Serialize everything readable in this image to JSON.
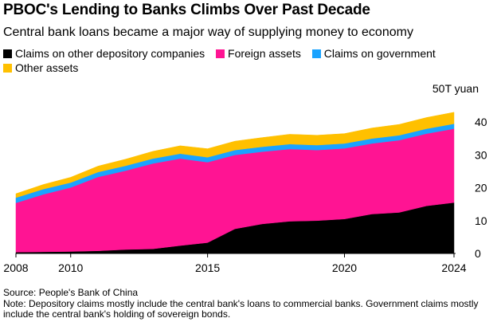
{
  "title": "PBOC's Lending to Banks Climbs Over Past Decade",
  "subtitle": "Central bank loans became a major way of supplying money to economy",
  "source": "Source: People's Bank of China",
  "note": "Note: Depository claims mostly include the central bank's loans to commercial banks. Government claims mostly include the central bank's holding of sovereign bonds.",
  "chart_data": {
    "type": "area",
    "stacked": true,
    "title": "PBOC's Lending to Banks Climbs Over Past Decade",
    "subtitle": "Central bank loans became a major way of supplying money to economy",
    "ylabel": "T yuan",
    "yunit_label": "50T yuan",
    "ylim": [
      0,
      50
    ],
    "yticks": [
      "0",
      "10",
      "20",
      "30",
      "40",
      "50T yuan"
    ],
    "xticks": [
      "2008",
      "2010",
      "2015",
      "2020",
      "2024"
    ],
    "x": [
      2008,
      2009,
      2010,
      2011,
      2012,
      2013,
      2014,
      2015,
      2016,
      2017,
      2018,
      2019,
      2020,
      2021,
      2022,
      2023,
      2024
    ],
    "series": [
      {
        "name": "Claims on other depository companies",
        "color": "#000000",
        "values": [
          0.4,
          0.5,
          0.6,
          0.8,
          1.2,
          1.4,
          2.4,
          3.3,
          7.5,
          9.0,
          9.8,
          10.0,
          10.5,
          12.0,
          12.5,
          14.5,
          15.5
        ]
      },
      {
        "name": "Foreign assets",
        "color": "#ff1493",
        "values": [
          15.0,
          17.5,
          19.5,
          22.5,
          24.0,
          26.0,
          26.5,
          24.5,
          22.5,
          22.0,
          22.0,
          21.5,
          21.5,
          21.5,
          22.0,
          22.0,
          22.5
        ]
      },
      {
        "name": "Claims on government",
        "color": "#1aa3ff",
        "values": [
          1.6,
          1.6,
          1.5,
          1.5,
          1.5,
          1.5,
          1.5,
          1.5,
          1.5,
          1.5,
          1.5,
          1.5,
          1.5,
          1.5,
          1.5,
          1.5,
          1.5
        ]
      },
      {
        "name": "Other assets",
        "color": "#ffc000",
        "values": [
          1.2,
          1.4,
          1.6,
          1.8,
          2.0,
          2.2,
          2.4,
          2.6,
          2.7,
          2.8,
          3.0,
          3.0,
          3.0,
          3.2,
          3.3,
          3.4,
          3.5
        ]
      }
    ],
    "grid": false,
    "legend_position": "top-left"
  }
}
